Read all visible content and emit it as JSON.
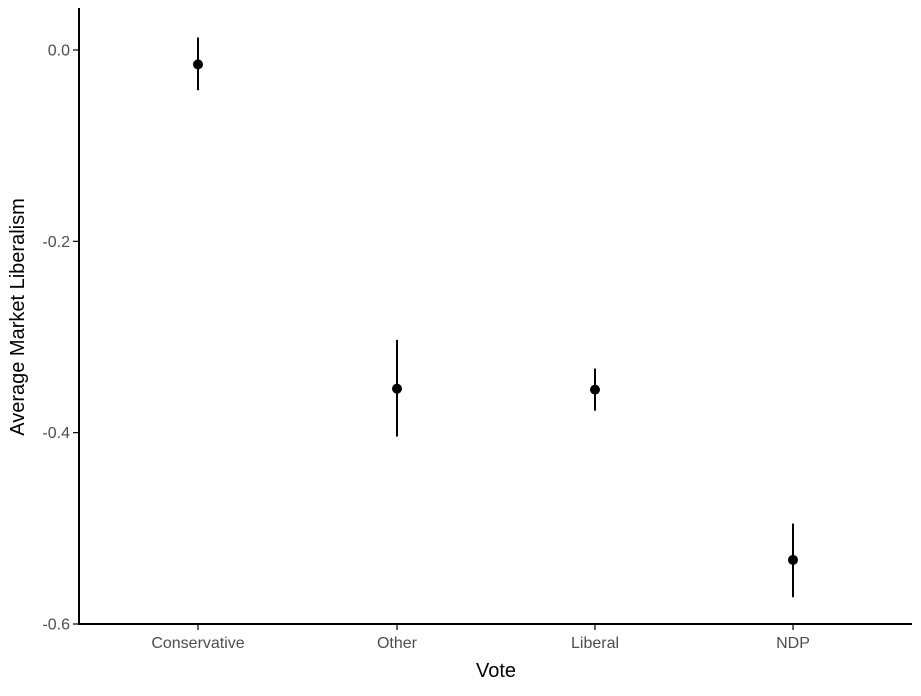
{
  "chart_data": {
    "type": "scatter",
    "title": "",
    "xlabel": "Vote",
    "ylabel": "Average Market Liberalism",
    "categories": [
      "Conservative",
      "Other",
      "Liberal",
      "NDP"
    ],
    "series": [
      {
        "values": [
          -0.015,
          -0.354,
          -0.355,
          -0.533
        ],
        "lower": [
          -0.042,
          -0.404,
          -0.377,
          -0.572
        ],
        "upper": [
          0.013,
          -0.303,
          -0.333,
          -0.495
        ]
      }
    ],
    "ylim": [
      -0.6,
      0.04
    ],
    "yticks": [
      0.0,
      -0.2,
      -0.4,
      -0.6
    ],
    "ytick_labels": [
      "0.0",
      "-0.2",
      "-0.4",
      "-0.6"
    ],
    "grid": false,
    "colors": {
      "point": "#000000",
      "errorbar": "#000000",
      "axis": "#000000",
      "tick_text": "#4d4d4d"
    }
  }
}
